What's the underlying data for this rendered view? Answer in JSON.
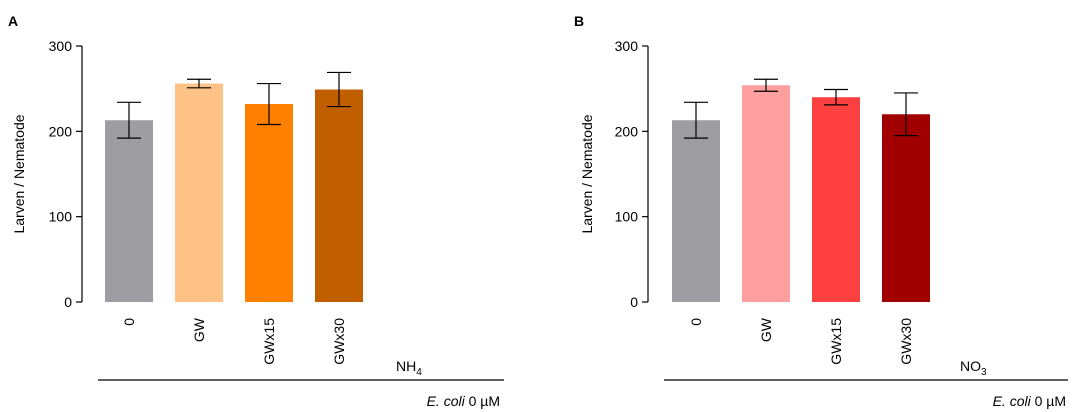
{
  "chart_data": [
    {
      "panel": "A",
      "type": "bar",
      "ylabel": "Larven / Nematode",
      "ylim": [
        0,
        300
      ],
      "yticks": [
        "0",
        "100",
        "200",
        "300"
      ],
      "categories": [
        "0",
        "GW",
        "GWx15",
        "GWx30"
      ],
      "values": [
        213,
        256,
        232,
        249
      ],
      "errors": [
        21,
        5,
        24,
        20
      ],
      "colors": [
        "#9d9da2",
        "#ffc286",
        "#ff8000",
        "#c05e00"
      ],
      "nutrient": {
        "base": "NH",
        "sub": "4"
      },
      "condition": {
        "organism": "E. coli",
        "dose": "0 µM"
      }
    },
    {
      "panel": "B",
      "type": "bar",
      "ylabel": "Larven / Nematode",
      "ylim": [
        0,
        300
      ],
      "yticks": [
        "0",
        "100",
        "200",
        "300"
      ],
      "categories": [
        "0",
        "GW",
        "GWx15",
        "GWx30"
      ],
      "values": [
        213,
        254,
        240,
        220
      ],
      "errors": [
        21,
        7,
        9,
        25
      ],
      "colors": [
        "#9d9da2",
        "#ff9f9f",
        "#ff4040",
        "#a00000"
      ],
      "nutrient": {
        "base": "NO",
        "sub": "3"
      },
      "condition": {
        "organism": "E. coli",
        "dose": "0 µM"
      }
    }
  ]
}
